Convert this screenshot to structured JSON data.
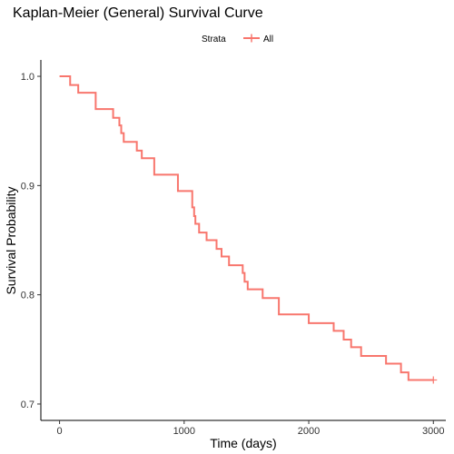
{
  "chart_data": {
    "type": "line",
    "step": true,
    "title": "Kaplan-Meier (General) Survival Curve",
    "xlabel": "Time (days)",
    "ylabel": "Survival Probability",
    "xlim": [
      -150,
      3100
    ],
    "ylim": [
      0.685,
      1.015
    ],
    "x_ticks": [
      0,
      1000,
      2000,
      3000
    ],
    "y_ticks": [
      0.7,
      0.8,
      0.9,
      1.0
    ],
    "x_tick_labels": [
      "0",
      "1000",
      "2000",
      "3000"
    ],
    "y_tick_labels": [
      "0.7",
      "0.8",
      "0.9",
      "1.0"
    ],
    "grid": false,
    "legend": {
      "title": "Strata",
      "position": "top",
      "entries": [
        "All"
      ]
    },
    "series": [
      {
        "name": "All",
        "color": "#F8766D",
        "x": [
          0,
          85,
          150,
          290,
          430,
          480,
          495,
          515,
          530,
          620,
          660,
          760,
          950,
          1065,
          1080,
          1090,
          1100,
          1120,
          1140,
          1180,
          1260,
          1300,
          1360,
          1470,
          1485,
          1510,
          1630,
          1760,
          2000,
          2200,
          2280,
          2340,
          2420,
          2620,
          2740,
          2800,
          3000
        ],
        "y": [
          1.0,
          0.992,
          0.985,
          0.97,
          0.962,
          0.955,
          0.948,
          0.94,
          0.94,
          0.932,
          0.925,
          0.91,
          0.895,
          0.88,
          0.872,
          0.865,
          0.865,
          0.857,
          0.857,
          0.85,
          0.842,
          0.835,
          0.827,
          0.82,
          0.812,
          0.805,
          0.797,
          0.782,
          0.774,
          0.767,
          0.759,
          0.752,
          0.744,
          0.737,
          0.729,
          0.722,
          0.722
        ],
        "censor_x": [
          3000
        ],
        "censor_y": [
          0.722
        ]
      }
    ]
  }
}
